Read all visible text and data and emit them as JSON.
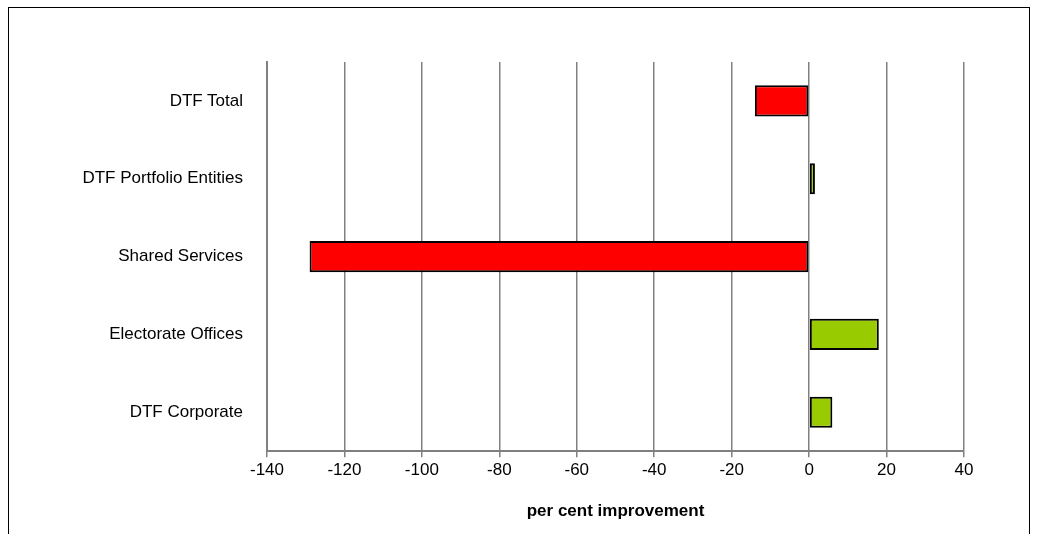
{
  "chart_data": {
    "type": "bar",
    "orientation": "horizontal",
    "xlabel": "per cent improvement",
    "categories": [
      "DTF Total",
      "DTF Portfolio Entities",
      "Shared Services",
      "Electorate Offices",
      "DTF Corporate"
    ],
    "values": [
      -14,
      1.5,
      -129,
      18,
      6
    ],
    "colors": [
      "#ff0000",
      "#99cc00",
      "#ff0000",
      "#99cc00",
      "#99cc00"
    ],
    "xlim": [
      -140,
      40
    ],
    "xticks": [
      -140,
      -120,
      -100,
      -80,
      -60,
      -40,
      -20,
      0,
      20,
      40
    ],
    "grid": "x",
    "legend": false
  }
}
